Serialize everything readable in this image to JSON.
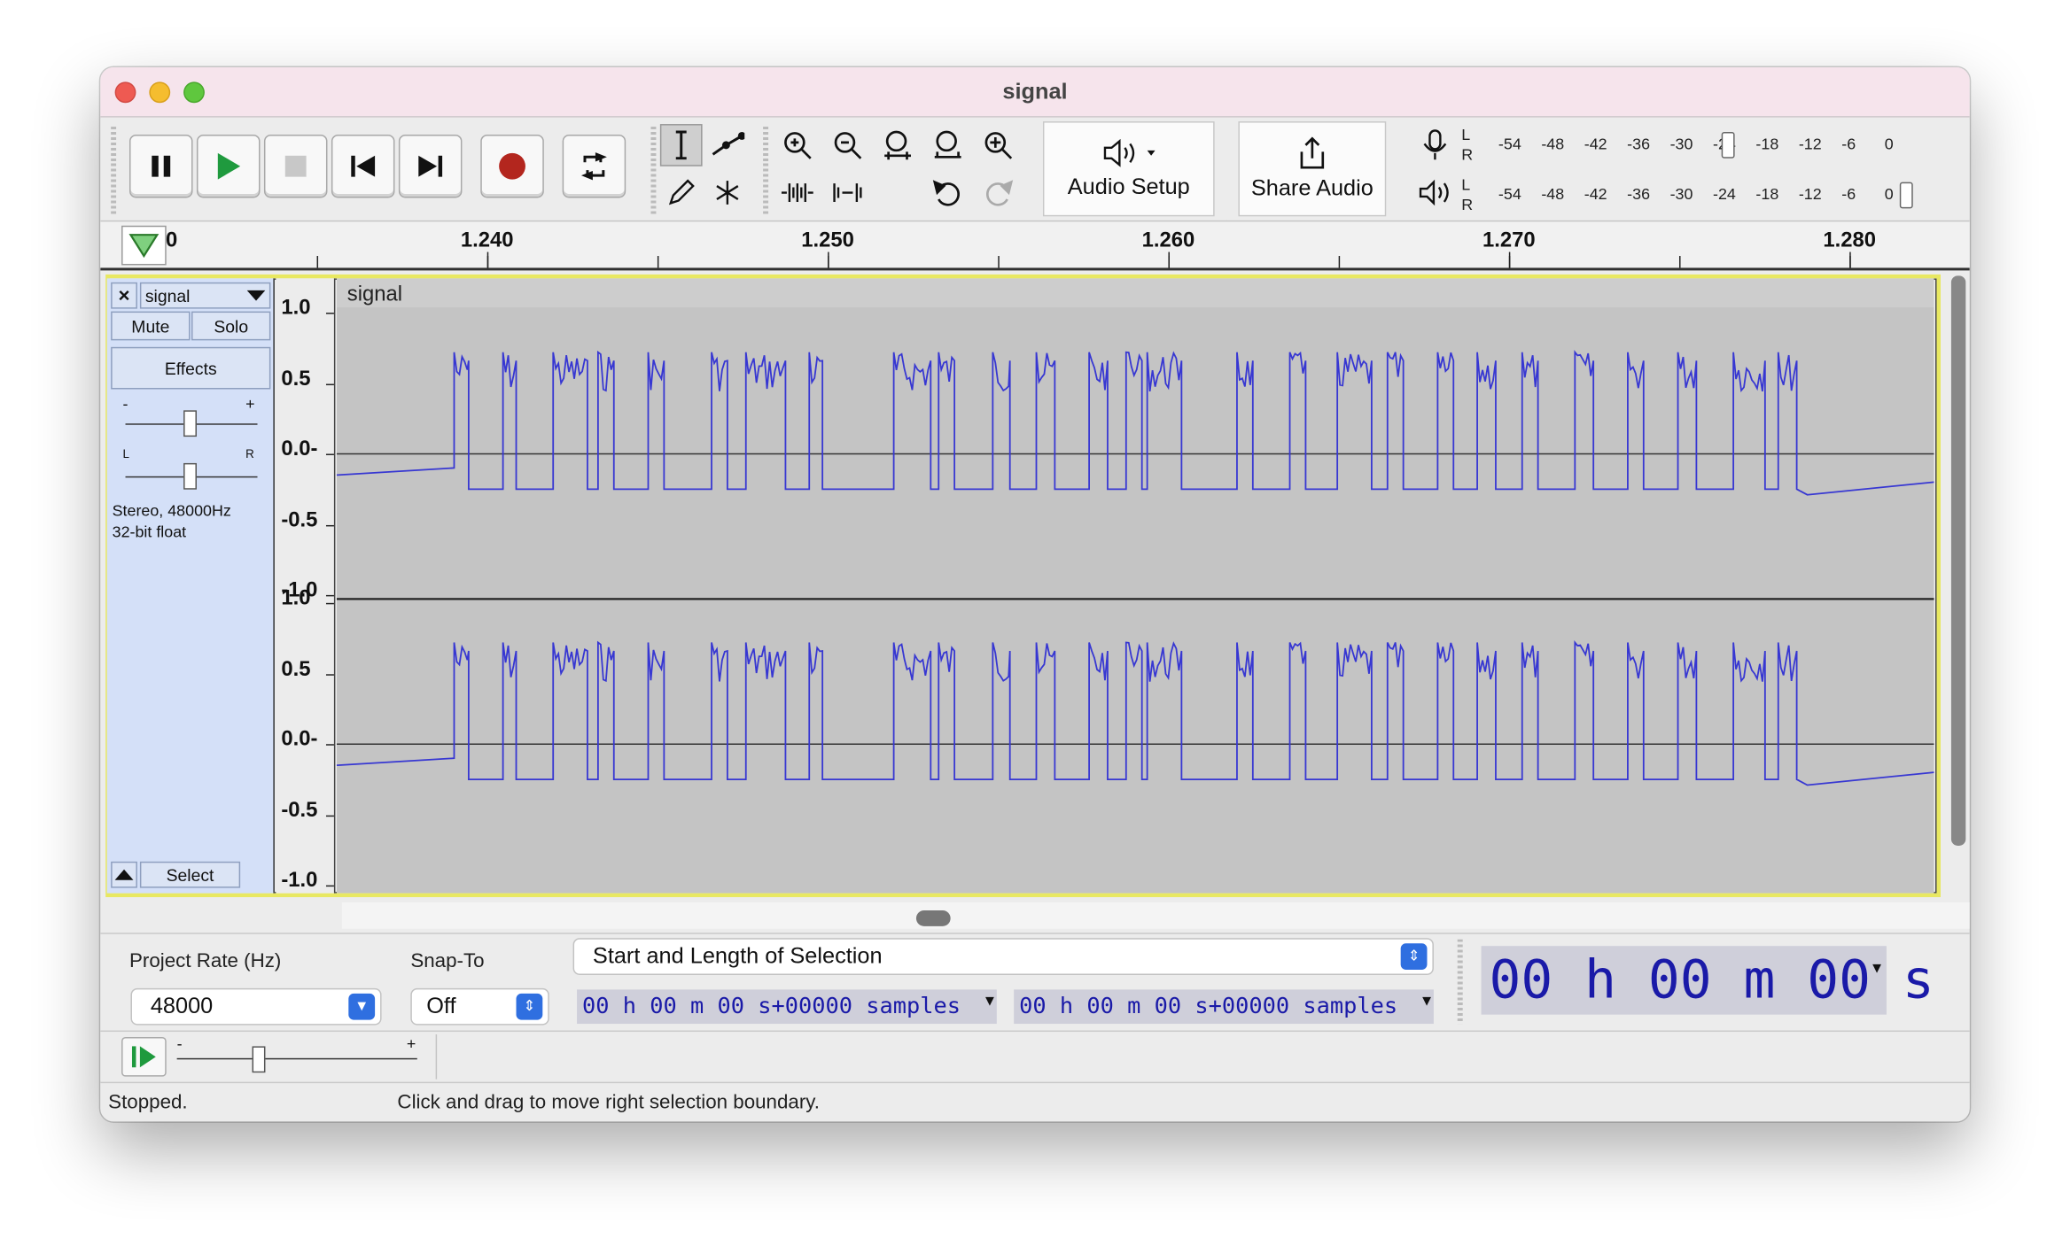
{
  "window": {
    "title": "signal"
  },
  "toolbar": {
    "audio_setup_label": "Audio Setup",
    "share_audio_label": "Share Audio",
    "record_meter": {
      "channels": [
        "L",
        "R"
      ],
      "ticks": [
        "-54",
        "-48",
        "-42",
        "-36",
        "-30",
        "-24",
        "-18",
        "-12",
        "-6",
        "0"
      ]
    },
    "playback_meter": {
      "channels": [
        "L",
        "R"
      ],
      "ticks": [
        "-54",
        "-48",
        "-42",
        "-36",
        "-30",
        "-24",
        "-18",
        "-12",
        "-6",
        "0"
      ]
    }
  },
  "ruler": {
    "start_fragment": "0",
    "labels": [
      "1.240",
      "1.250",
      "1.260",
      "1.270",
      "1.280"
    ]
  },
  "track": {
    "name": "signal",
    "close_label": "×",
    "mute_label": "Mute",
    "solo_label": "Solo",
    "effects_label": "Effects",
    "gain_minus": "-",
    "gain_plus": "+",
    "pan_left": "L",
    "pan_right": "R",
    "info_line1": "Stereo, 48000Hz",
    "info_line2": "32-bit float",
    "select_label": "Select",
    "clip_title": "signal",
    "scale_labels": [
      "1.0",
      "0.5",
      "0.0-",
      "-0.5",
      "-1.0"
    ]
  },
  "selection_bar": {
    "project_rate_label": "Project Rate (Hz)",
    "project_rate_value": "48000",
    "snap_to_label": "Snap-To",
    "snap_to_value": "Off",
    "selection_mode": "Start and Length of Selection",
    "start_time": "00 h 00 m 00 s+00000 samples",
    "length_time": "00 h 00 m 00 s+00000 samples",
    "audio_position": "00 h 00 m 00 s"
  },
  "play_at_speed": {
    "minus": "-",
    "plus": "+"
  },
  "status": {
    "state": "Stopped.",
    "hint": "Click and drag to move right selection boundary."
  },
  "colors": {
    "waveform": "#3737d2",
    "track_bg": "#c4c4c4",
    "selected_border": "#e8e862",
    "time_text": "#1a1aa8"
  }
}
